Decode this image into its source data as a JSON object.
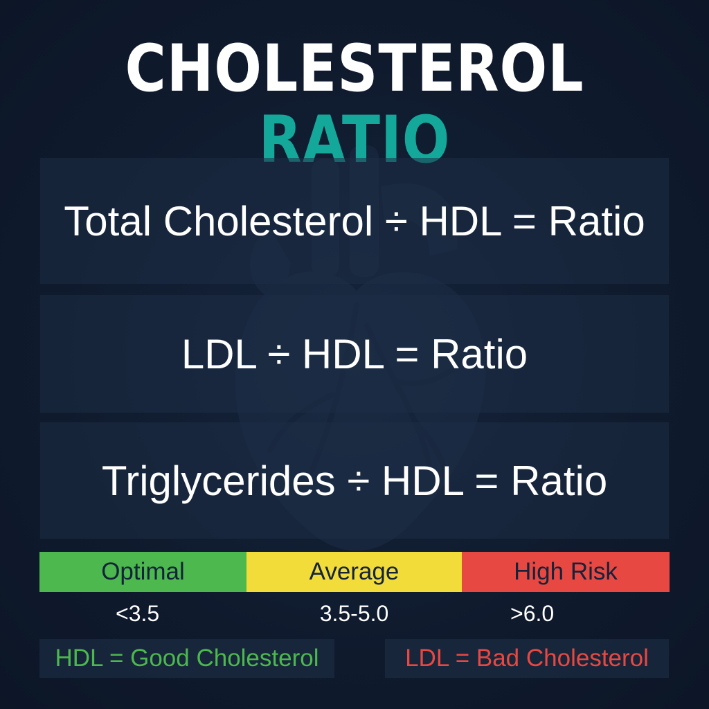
{
  "title": {
    "part1": "CHOLESTEROL",
    "part2": "RATIO"
  },
  "formulas": [
    "Total Cholesterol ÷ HDL = Ratio",
    "LDL ÷ HDL = Ratio",
    "Triglycerides ÷ HDL = Ratio"
  ],
  "scale": [
    {
      "label": "Optimal",
      "value": "<3.5",
      "color": "#4cb84e"
    },
    {
      "label": "Average",
      "value": "3.5-5.0",
      "color": "#f2dc3a"
    },
    {
      "label": "High Risk",
      "value": ">6.0",
      "color": "#e84842"
    }
  ],
  "notes": {
    "good": "HDL = Good Cholesterol",
    "bad": "LDL = Bad Cholesterol"
  },
  "background_icon": "heart-anatomy-icon",
  "colors": {
    "background": "#0f1a2d",
    "accent": "#14a89a"
  }
}
